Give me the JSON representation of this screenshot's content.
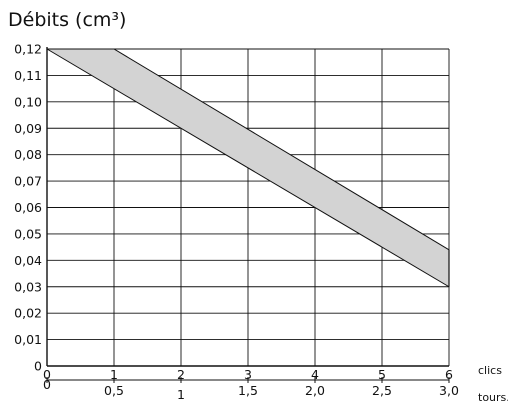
{
  "chart_data": {
    "type": "area",
    "title": "Débits (cm³)",
    "xlabel": "clics",
    "x2label": "tours.",
    "ylabel": "",
    "xlim": [
      0,
      6
    ],
    "ylim": [
      0,
      0.12
    ],
    "grid": true,
    "y_ticks": [
      "0",
      "0,01",
      "0,02",
      "0,03",
      "0,04",
      "0,05",
      "0,06",
      "0,07",
      "0,08",
      "0,09",
      "0,10",
      "0,11",
      "0,12"
    ],
    "x_ticks": [
      "0",
      "1",
      "2",
      "3",
      "4",
      "5",
      "6"
    ],
    "x2_ticks": [
      {
        "value": 0,
        "label": "0"
      },
      {
        "value": 1,
        "label": "0,5"
      },
      {
        "value": 2,
        "label": "1"
      },
      {
        "value": 3,
        "label": "1,5"
      },
      {
        "value": 4,
        "label": "2,0"
      },
      {
        "value": 5,
        "label": "2,5"
      },
      {
        "value": 6,
        "label": "3,0"
      }
    ],
    "band": {
      "upper": [
        {
          "x": 0,
          "y": 0.12
        },
        {
          "x": 1,
          "y": 0.12
        },
        {
          "x": 6,
          "y": 0.044
        }
      ],
      "lower": [
        {
          "x": 0,
          "y": 0.12
        },
        {
          "x": 6,
          "y": 0.03
        }
      ]
    },
    "colors": {
      "band_fill": "#d3d3d3",
      "line": "#111111",
      "grid": "#111111"
    }
  }
}
